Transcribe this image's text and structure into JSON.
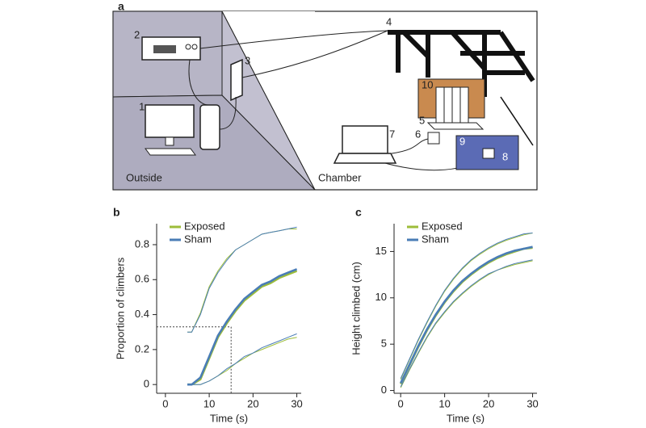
{
  "diagram": {
    "panel_label": "a",
    "labels": [
      "1",
      "2",
      "3",
      "4",
      "5",
      "6",
      "7",
      "8",
      "9",
      "10"
    ],
    "regions": [
      "Outside",
      "Chamber"
    ]
  },
  "chart_data": [
    {
      "type": "line",
      "panel_label": "b",
      "xlabel": "Time (s)",
      "ylabel": "Proportion of climbers",
      "x": [
        5,
        6,
        8,
        10,
        12,
        14,
        16,
        18,
        20,
        22,
        24,
        26,
        28,
        30
      ],
      "series": [
        {
          "name": "Exposed",
          "color": "#9dbd3a",
          "values": [
            0,
            0,
            0.03,
            0.15,
            0.27,
            0.35,
            0.42,
            0.48,
            0.52,
            0.56,
            0.58,
            0.61,
            0.63,
            0.65
          ],
          "upper": [
            0.3,
            0.3,
            0.41,
            0.56,
            0.65,
            0.72,
            0.77,
            0.8,
            0.83,
            0.86,
            0.87,
            0.88,
            0.89,
            0.89
          ],
          "lower": [
            0,
            0,
            0,
            0.02,
            0.05,
            0.08,
            0.12,
            0.15,
            0.18,
            0.2,
            0.22,
            0.24,
            0.26,
            0.27
          ]
        },
        {
          "name": "Sham",
          "color": "#4a7db6",
          "values": [
            0,
            0,
            0.04,
            0.16,
            0.28,
            0.36,
            0.43,
            0.49,
            0.53,
            0.57,
            0.59,
            0.62,
            0.64,
            0.66
          ],
          "upper": [
            0.3,
            0.3,
            0.4,
            0.55,
            0.64,
            0.71,
            0.77,
            0.8,
            0.83,
            0.86,
            0.87,
            0.88,
            0.89,
            0.9
          ],
          "lower": [
            0,
            0,
            0,
            0.02,
            0.05,
            0.09,
            0.12,
            0.16,
            0.18,
            0.21,
            0.23,
            0.25,
            0.27,
            0.29
          ]
        }
      ],
      "reference_lines": {
        "x": 15,
        "y": 0.33
      },
      "xlim": [
        -2,
        31
      ],
      "ylim": [
        -0.05,
        0.92
      ],
      "xticks": [
        0,
        10,
        20,
        30
      ],
      "yticks": [
        0,
        0.2,
        0.4,
        0.6,
        0.8
      ]
    },
    {
      "type": "line",
      "panel_label": "c",
      "xlabel": "Time (s)",
      "ylabel": "Height climbed (cm)",
      "x": [
        0,
        2,
        4,
        6,
        8,
        10,
        12,
        14,
        16,
        18,
        20,
        22,
        24,
        26,
        28,
        30
      ],
      "series": [
        {
          "name": "Exposed",
          "color": "#9dbd3a",
          "values": [
            0.7,
            2.7,
            4.7,
            6.5,
            8.1,
            9.5,
            10.7,
            11.7,
            12.5,
            13.2,
            13.8,
            14.3,
            14.7,
            15.0,
            15.3,
            15.4
          ],
          "upper": [
            1.2,
            3.3,
            5.4,
            7.3,
            9.1,
            10.7,
            12.0,
            13.1,
            14.0,
            14.7,
            15.3,
            15.8,
            16.2,
            16.5,
            16.8,
            17.0
          ],
          "lower": [
            0.3,
            2.2,
            4.0,
            5.7,
            7.2,
            8.4,
            9.5,
            10.4,
            11.2,
            11.9,
            12.5,
            13.0,
            13.3,
            13.6,
            13.8,
            14.0
          ]
        },
        {
          "name": "Sham",
          "color": "#4a7db6",
          "values": [
            0.8,
            2.8,
            4.8,
            6.6,
            8.2,
            9.6,
            10.8,
            11.8,
            12.6,
            13.3,
            13.9,
            14.4,
            14.8,
            15.1,
            15.3,
            15.5
          ],
          "upper": [
            1.3,
            3.4,
            5.5,
            7.4,
            9.2,
            10.8,
            12.1,
            13.2,
            14.1,
            14.8,
            15.4,
            15.9,
            16.3,
            16.6,
            16.9,
            17.0
          ],
          "lower": [
            0.4,
            2.3,
            4.1,
            5.8,
            7.3,
            8.5,
            9.6,
            10.5,
            11.3,
            12.0,
            12.6,
            13.0,
            13.4,
            13.7,
            13.9,
            14.1
          ]
        }
      ],
      "xlim": [
        -1.5,
        31
      ],
      "ylim": [
        -0.3,
        18
      ],
      "xticks": [
        0,
        10,
        20,
        30
      ],
      "yticks": [
        0,
        5,
        10,
        15
      ]
    }
  ]
}
